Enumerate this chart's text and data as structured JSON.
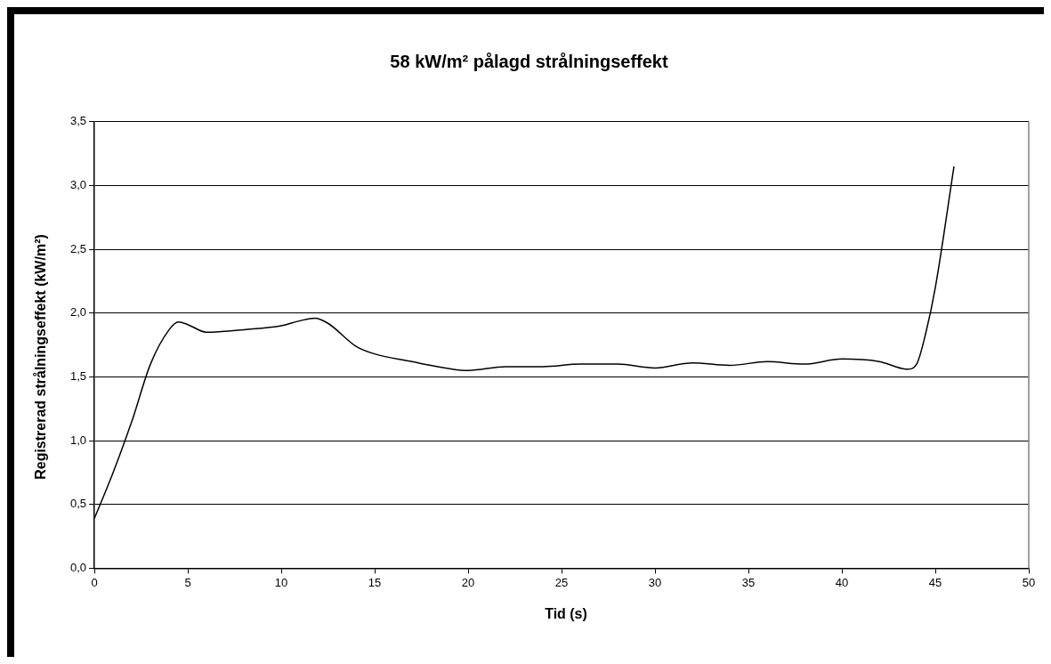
{
  "chart_data": {
    "type": "line",
    "title": "58 kW/m² pålagd strålningseffekt",
    "xlabel": "Tid (s)",
    "ylabel": "Registrerad strålningseffekt (kW/m²)",
    "xlim": [
      0,
      50
    ],
    "xticks": [
      0,
      5,
      10,
      15,
      20,
      25,
      30,
      35,
      40,
      45,
      50
    ],
    "ylim": [
      0,
      3.5
    ],
    "yticks": [
      {
        "value": 0,
        "label": "0,0"
      },
      {
        "value": 0.5,
        "label": "0,5"
      },
      {
        "value": 1,
        "label": "1,0"
      },
      {
        "value": 1.5,
        "label": "1,5"
      },
      {
        "value": 2,
        "label": "2,0"
      },
      {
        "value": 2.5,
        "label": "2,5"
      },
      {
        "value": 3,
        "label": "3,0"
      },
      {
        "value": 3.5,
        "label": "3,5"
      }
    ],
    "grid": "y",
    "legend": false,
    "marker": "none",
    "line_style": "solid",
    "series": [
      {
        "color": "#000000",
        "x": [
          0,
          1,
          2,
          3,
          4,
          4.5,
          5,
          6,
          8,
          10,
          11,
          11.8,
          12.5,
          14,
          15,
          17,
          18,
          20,
          22,
          24,
          26,
          27,
          28,
          30,
          32,
          34,
          36,
          38,
          40,
          42,
          43.5,
          44,
          44.5,
          45,
          46
        ],
        "values": [
          0.39,
          0.75,
          1.15,
          1.6,
          1.87,
          1.93,
          1.91,
          1.85,
          1.87,
          1.9,
          1.94,
          1.96,
          1.92,
          1.74,
          1.68,
          1.62,
          1.59,
          1.55,
          1.58,
          1.58,
          1.6,
          1.6,
          1.6,
          1.57,
          1.61,
          1.59,
          1.62,
          1.6,
          1.64,
          1.62,
          1.56,
          1.6,
          1.85,
          2.2,
          3.15
        ]
      }
    ]
  }
}
